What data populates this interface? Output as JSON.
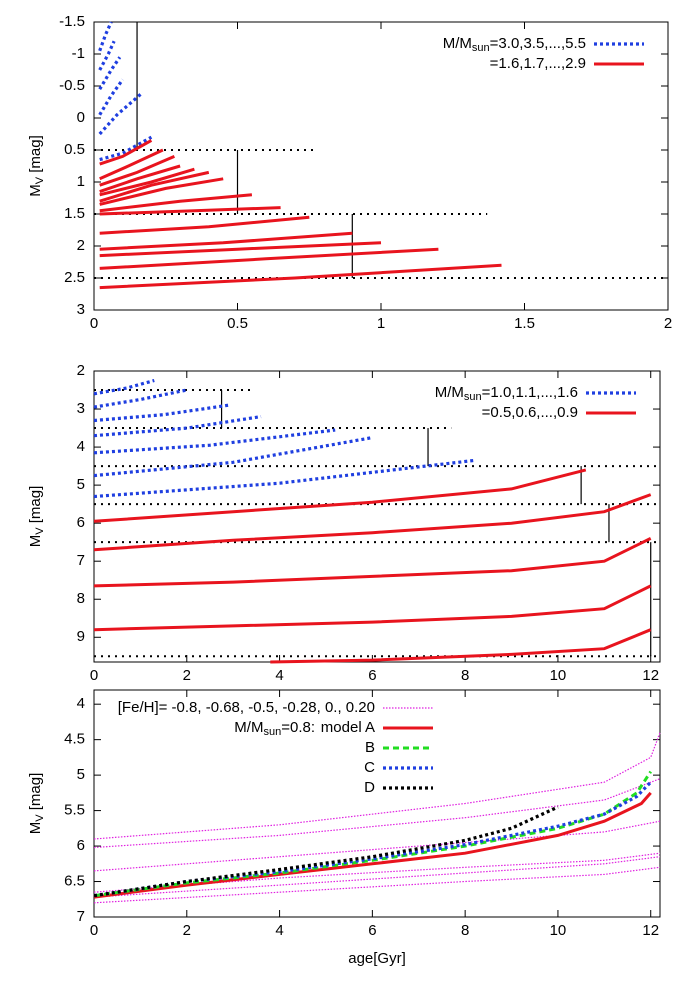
{
  "chart_data": [
    {
      "type": "line",
      "ylabel": [
        "M",
        "V",
        " [mag]"
      ],
      "xlim": [
        0,
        2
      ],
      "ylim": [
        -1.5,
        3
      ],
      "y_inverted": true,
      "xticks": [
        0,
        0.5,
        1,
        1.5,
        2
      ],
      "yticks": [
        -1.5,
        -1,
        -0.5,
        0,
        0.5,
        1,
        1.5,
        2,
        2.5,
        3
      ],
      "legend_position": "top-right",
      "series": [
        {
          "name": [
            "M/M",
            "sun",
            "=3.0,3.5,...,5.5"
          ],
          "color": "#1f3fe0",
          "dash": "dotted",
          "curves": [
            {
              "x": [
                0.02,
                0.04,
                0.06
              ],
              "values": [
                -1.05,
                -1.3,
                -1.5
              ]
            },
            {
              "x": [
                0.02,
                0.05,
                0.07
              ],
              "values": [
                -0.75,
                -1.0,
                -1.2
              ]
            },
            {
              "x": [
                0.02,
                0.06,
                0.09
              ],
              "values": [
                -0.45,
                -0.75,
                -0.95
              ]
            },
            {
              "x": [
                0.02,
                0.06,
                0.1
              ],
              "values": [
                -0.05,
                -0.35,
                -0.6
              ]
            },
            {
              "x": [
                0.02,
                0.08,
                0.17
              ],
              "values": [
                0.25,
                -0.05,
                -0.4
              ]
            },
            {
              "x": [
                0.02,
                0.1,
                0.2
              ],
              "values": [
                0.65,
                0.55,
                0.3
              ]
            }
          ]
        },
        {
          "name": [
            "=1.6,1.7,...,2.9"
          ],
          "color": "#e8141e",
          "dash": "solid",
          "curves": [
            {
              "x": [
                0.02,
                0.1,
                0.2
              ],
              "values": [
                0.72,
                0.6,
                0.35
              ]
            },
            {
              "x": [
                0.02,
                0.12,
                0.24
              ],
              "values": [
                0.95,
                0.75,
                0.5
              ]
            },
            {
              "x": [
                0.02,
                0.15,
                0.28
              ],
              "values": [
                1.05,
                0.85,
                0.6
              ]
            },
            {
              "x": [
                0.02,
                0.15,
                0.3
              ],
              "values": [
                1.15,
                0.95,
                0.75
              ]
            },
            {
              "x": [
                0.02,
                0.2,
                0.35
              ],
              "values": [
                1.2,
                1.0,
                0.8
              ]
            },
            {
              "x": [
                0.02,
                0.2,
                0.4
              ],
              "values": [
                1.3,
                1.05,
                0.85
              ]
            },
            {
              "x": [
                0.02,
                0.25,
                0.45
              ],
              "values": [
                1.35,
                1.1,
                0.95
              ]
            },
            {
              "x": [
                0.02,
                0.3,
                0.55
              ],
              "values": [
                1.45,
                1.3,
                1.2
              ]
            },
            {
              "x": [
                0.02,
                0.35,
                0.65
              ],
              "values": [
                1.5,
                1.45,
                1.4
              ]
            },
            {
              "x": [
                0.02,
                0.4,
                0.75
              ],
              "values": [
                1.8,
                1.7,
                1.55
              ]
            },
            {
              "x": [
                0.02,
                0.45,
                0.9
              ],
              "values": [
                2.05,
                1.95,
                1.8
              ]
            },
            {
              "x": [
                0.02,
                0.5,
                1.0
              ],
              "values": [
                2.15,
                2.05,
                1.95
              ]
            },
            {
              "x": [
                0.02,
                0.6,
                1.2
              ],
              "values": [
                2.35,
                2.2,
                2.05
              ]
            },
            {
              "x": [
                0.02,
                0.7,
                1.42
              ],
              "values": [
                2.65,
                2.5,
                2.3
              ]
            }
          ]
        }
      ],
      "hlines": [
        {
          "y": 0.5,
          "x": [
            0,
            0.78
          ]
        },
        {
          "y": 1.5,
          "x": [
            0,
            1.37
          ]
        },
        {
          "y": 2.5,
          "x": [
            0,
            2
          ]
        }
      ],
      "vlines": [
        {
          "x": 0.15,
          "y": [
            -1.5,
            0.5
          ]
        },
        {
          "x": 0.5,
          "y": [
            0.5,
            1.5
          ]
        },
        {
          "x": 0.9,
          "y": [
            1.5,
            2.5
          ]
        }
      ]
    },
    {
      "type": "line",
      "ylabel": [
        "M",
        "V",
        " [mag]"
      ],
      "xlim": [
        0,
        12.2
      ],
      "ylim": [
        2,
        9.65
      ],
      "y_inverted": true,
      "xticks": [
        0,
        2,
        4,
        6,
        8,
        10,
        12
      ],
      "yticks": [
        2,
        3,
        4,
        5,
        6,
        7,
        8,
        9
      ],
      "legend_position": "top-right",
      "series": [
        {
          "name": [
            "M/M",
            "sun",
            "=1.0,1.1,...,1.6"
          ],
          "color": "#1f3fe0",
          "dash": "dotted",
          "curves": [
            {
              "x": [
                0,
                0.7,
                1.3
              ],
              "values": [
                2.6,
                2.45,
                2.25
              ]
            },
            {
              "x": [
                0,
                1,
                2
              ],
              "values": [
                2.95,
                2.75,
                2.5
              ]
            },
            {
              "x": [
                0,
                1.5,
                2.9
              ],
              "values": [
                3.3,
                3.15,
                2.9
              ]
            },
            {
              "x": [
                0,
                2,
                3.6
              ],
              "values": [
                3.7,
                3.5,
                3.2
              ]
            },
            {
              "x": [
                0,
                2.5,
                5.2
              ],
              "values": [
                4.15,
                3.95,
                3.55
              ]
            },
            {
              "x": [
                0,
                3,
                6
              ],
              "values": [
                4.75,
                4.4,
                3.75
              ]
            },
            {
              "x": [
                0,
                4,
                8.2
              ],
              "values": [
                5.3,
                4.95,
                4.35
              ]
            }
          ]
        },
        {
          "name": [
            "=0.5,0.6,...,0.9"
          ],
          "color": "#e8141e",
          "dash": "solid",
          "curves": [
            {
              "x": [
                0,
                3,
                6,
                9,
                10.6
              ],
              "values": [
                5.95,
                5.7,
                5.45,
                5.1,
                4.6
              ]
            },
            {
              "x": [
                0,
                3,
                6,
                9,
                11,
                12
              ],
              "values": [
                6.7,
                6.45,
                6.25,
                6.0,
                5.7,
                5.25
              ]
            },
            {
              "x": [
                0,
                3,
                6,
                9,
                11,
                12
              ],
              "values": [
                7.65,
                7.55,
                7.4,
                7.25,
                7.0,
                6.4
              ]
            },
            {
              "x": [
                0,
                3,
                6,
                9,
                11,
                12
              ],
              "values": [
                8.8,
                8.7,
                8.6,
                8.45,
                8.25,
                7.65
              ]
            },
            {
              "x": [
                3.8,
                6,
                9,
                11,
                12
              ],
              "values": [
                9.65,
                9.6,
                9.45,
                9.3,
                8.8
              ]
            }
          ]
        }
      ],
      "hlines": [
        {
          "y": 2.5,
          "x": [
            0,
            3.4
          ]
        },
        {
          "y": 3.5,
          "x": [
            0,
            7.7
          ]
        },
        {
          "y": 4.5,
          "x": [
            0,
            12.2
          ]
        },
        {
          "y": 5.5,
          "x": [
            0,
            12.2
          ]
        },
        {
          "y": 6.5,
          "x": [
            0,
            12.2
          ]
        },
        {
          "y": 9.5,
          "x": [
            0,
            12.2
          ]
        }
      ],
      "vlines": [
        {
          "x": 2.75,
          "y": [
            2.5,
            3.5
          ]
        },
        {
          "x": 7.2,
          "y": [
            3.5,
            4.5
          ]
        },
        {
          "x": 10.5,
          "y": [
            4.5,
            5.5
          ]
        },
        {
          "x": 11.1,
          "y": [
            5.5,
            6.5
          ]
        },
        {
          "x": 12,
          "y": [
            6.5,
            9.5
          ]
        }
      ]
    },
    {
      "type": "line",
      "ylabel": [
        "M",
        "V",
        " [mag]"
      ],
      "xlabel": "age[Gyr]",
      "xlim": [
        0,
        12.2
      ],
      "ylim": [
        3.8,
        7
      ],
      "y_inverted": true,
      "xticks": [
        0,
        2,
        4,
        6,
        8,
        10,
        12
      ],
      "yticks": [
        4,
        4.5,
        5,
        5.5,
        6,
        6.5,
        7
      ],
      "legend_position": "top-center",
      "annotation": [
        "M/M",
        "sun",
        "=0.8:"
      ],
      "series": [
        {
          "name": [
            "[Fe/H]= -0.8, -0.68, -0.5, -0.28, 0., 0.20"
          ],
          "color": "#e020e0",
          "dash": "fine",
          "curves": [
            {
              "x": [
                0,
                4,
                8,
                11,
                12,
                12.2
              ],
              "values": [
                5.9,
                5.7,
                5.4,
                5.1,
                4.75,
                4.4
              ]
            },
            {
              "x": [
                0,
                4,
                8,
                11,
                12.2
              ],
              "values": [
                6.02,
                5.85,
                5.6,
                5.35,
                5.05
              ]
            },
            {
              "x": [
                0,
                4,
                8,
                11,
                12.2
              ],
              "values": [
                6.35,
                6.15,
                5.95,
                5.8,
                5.65
              ]
            },
            {
              "x": [
                0,
                4,
                8,
                11,
                12.2
              ],
              "values": [
                6.65,
                6.45,
                6.3,
                6.2,
                6.1
              ]
            },
            {
              "x": [
                0,
                4,
                8,
                11,
                12.2
              ],
              "values": [
                6.72,
                6.55,
                6.38,
                6.25,
                6.15
              ]
            },
            {
              "x": [
                0,
                4,
                8,
                11,
                12.2
              ],
              "values": [
                6.8,
                6.65,
                6.5,
                6.4,
                6.3
              ]
            }
          ]
        },
        {
          "name": [
            "model A"
          ],
          "color": "#e8141e",
          "dash": "solid",
          "curves": [
            {
              "x": [
                0,
                2,
                4,
                6,
                8,
                10,
                11,
                11.8,
                12
              ],
              "values": [
                6.72,
                6.55,
                6.4,
                6.25,
                6.1,
                5.85,
                5.65,
                5.4,
                5.25
              ]
            }
          ]
        },
        {
          "name": [
            "B"
          ],
          "color": "#22dd22",
          "dash": "dashed",
          "curves": [
            {
              "x": [
                0,
                2,
                4,
                6,
                8,
                10,
                11,
                11.7,
                12
              ],
              "values": [
                6.7,
                6.52,
                6.38,
                6.2,
                6.0,
                5.75,
                5.55,
                5.25,
                4.95
              ]
            }
          ]
        },
        {
          "name": [
            "C"
          ],
          "color": "#1f3fe0",
          "dash": "dotted",
          "curves": [
            {
              "x": [
                0,
                2,
                4,
                6,
                8,
                10,
                11,
                11.7,
                12
              ],
              "values": [
                6.7,
                6.5,
                6.36,
                6.18,
                5.98,
                5.72,
                5.55,
                5.3,
                5.1
              ]
            }
          ]
        },
        {
          "name": [
            "D"
          ],
          "color": "#000000",
          "dash": "dotted",
          "curves": [
            {
              "x": [
                0,
                2,
                4,
                6,
                8,
                9,
                10
              ],
              "values": [
                6.7,
                6.5,
                6.33,
                6.15,
                5.92,
                5.75,
                5.45
              ]
            }
          ]
        }
      ]
    }
  ]
}
